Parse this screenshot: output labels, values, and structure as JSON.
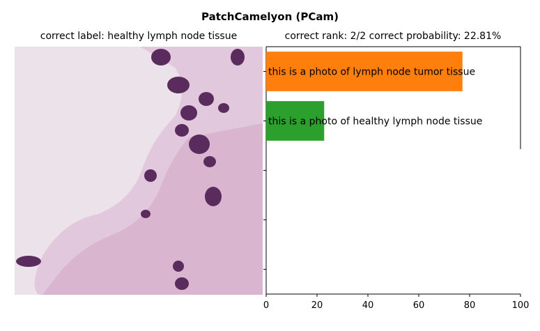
{
  "figure_title": "PatchCamelyon (PCam)",
  "image_panel": {
    "title": "correct label: healthy lymph node tissue"
  },
  "chart_title": "correct rank: 2/2   correct probability: 22.81%",
  "chart_data": {
    "type": "bar",
    "orientation": "horizontal",
    "categories": [
      "this is a photo of lymph node tumor tissue",
      "this is a photo of healthy lymph node tissue"
    ],
    "values": [
      77.19,
      22.81
    ],
    "bar_colors": [
      "#ff7f0e",
      "#2ca02c"
    ],
    "xlim": [
      0,
      100
    ],
    "x_ticks": [
      0,
      20,
      40,
      60,
      80,
      100
    ],
    "slots": 5,
    "title": "correct rank: 2/2   correct probability: 22.81%"
  }
}
